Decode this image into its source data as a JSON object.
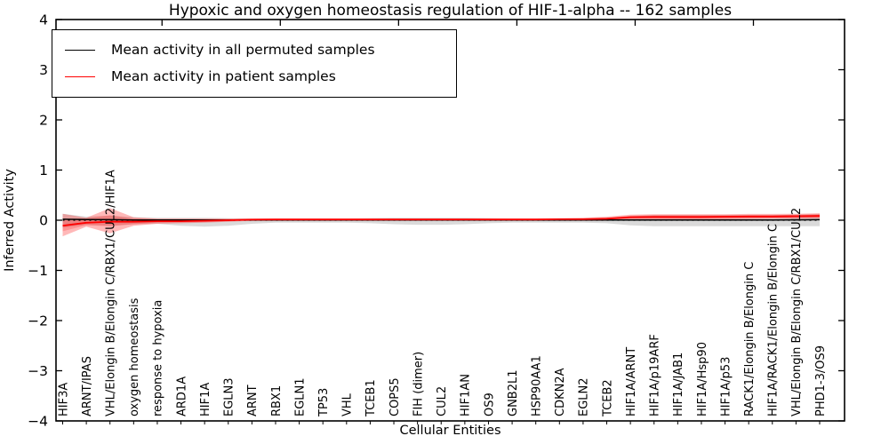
{
  "chart_data": {
    "type": "line",
    "title": "Hypoxic and oxygen homeostasis regulation of HIF-1-alpha -- 162 samples",
    "xlabel": "Cellular Entities",
    "ylabel": "Inferred Activity",
    "ylim": [
      -4,
      4
    ],
    "grid": false,
    "legend_position": "upper left",
    "yticks": [
      {
        "v": -4,
        "label": "−4"
      },
      {
        "v": -3,
        "label": "−3"
      },
      {
        "v": -2,
        "label": "−2"
      },
      {
        "v": -1,
        "label": "−1"
      },
      {
        "v": 0,
        "label": "0"
      },
      {
        "v": 1,
        "label": "1"
      },
      {
        "v": 2,
        "label": "2"
      },
      {
        "v": 3,
        "label": "3"
      },
      {
        "v": 4,
        "label": "4"
      }
    ],
    "top_ticks_at": [
      4.2,
      9.2,
      14.2,
      19.2,
      24.2,
      29.2
    ],
    "categories": [
      "HIF3A",
      "ARNT/IPAS",
      "VHL/Elongin B/Elongin C/RBX1/CUL2/HIF1A",
      "oxygen homeostasis",
      "response to hypoxia",
      "ARD1A",
      "HIF1A",
      "EGLN3",
      "ARNT",
      "RBX1",
      "EGLN1",
      "TP53",
      "VHL",
      "TCEB1",
      "COPS5",
      "FIH (dimer)",
      "CUL2",
      "HIF1AN",
      "OS9",
      "GNB2L1",
      "HSP90AA1",
      "CDKN2A",
      "EGLN2",
      "TCEB2",
      "HIF1A/ARNT",
      "HIF1A/p19ARF",
      "HIF1A/JAB1",
      "HIF1A/Hsp90",
      "HIF1A/p53",
      "RACK1/Elongin B/Elongin C",
      "HIF1A/RACK1/Elongin B/Elongin C",
      "VHL/Elongin B/Elongin C/RBX1/CUL2",
      "PHD1-3/OS9"
    ],
    "zero_line": {
      "value": 0,
      "style": "dotted",
      "color": "#000000"
    },
    "series": [
      {
        "name": "Mean activity in all permuted samples",
        "name_id": "permuted-mean-line",
        "color": "#000000",
        "width": 1.5,
        "values": [
          0.02,
          0.012,
          0.01,
          0.006,
          0.005,
          0.005,
          0.005,
          0.005,
          0.005,
          0.005,
          0.005,
          0.005,
          0.005,
          0.005,
          0.005,
          0.005,
          0.005,
          0.005,
          0.005,
          0.005,
          0.005,
          0.005,
          0.005,
          0.005,
          0.005,
          0.005,
          0.005,
          0.005,
          0.005,
          0.005,
          0.005,
          0.007,
          0.01
        ]
      },
      {
        "name": "Mean activity in patient samples",
        "name_id": "patient-mean-line",
        "color": "#ff0000",
        "width": 1.8,
        "values": [
          -0.11,
          -0.05,
          -0.03,
          -0.03,
          -0.02,
          -0.02,
          -0.01,
          0.0,
          0.01,
          0.015,
          0.015,
          0.015,
          0.015,
          0.015,
          0.015,
          0.015,
          0.015,
          0.015,
          0.015,
          0.015,
          0.015,
          0.02,
          0.02,
          0.03,
          0.06,
          0.065,
          0.065,
          0.065,
          0.07,
          0.075,
          0.075,
          0.08,
          0.085
        ]
      }
    ],
    "bands": [
      {
        "name": "permuted samples std band",
        "name_id": "permuted-std-band",
        "color": "rgba(150,150,150,0.35)",
        "upper": [
          0.13,
          0.07,
          0.09,
          0.06,
          0.05,
          0.05,
          0.05,
          0.04,
          0.03,
          0.03,
          0.03,
          0.03,
          0.03,
          0.04,
          0.05,
          0.05,
          0.05,
          0.05,
          0.04,
          0.03,
          0.03,
          0.03,
          0.03,
          0.04,
          0.08,
          0.1,
          0.1,
          0.1,
          0.1,
          0.1,
          0.1,
          0.11,
          0.12
        ],
        "lower": [
          -0.15,
          -0.09,
          -0.11,
          -0.08,
          -0.07,
          -0.11,
          -0.13,
          -0.11,
          -0.07,
          -0.05,
          -0.05,
          -0.05,
          -0.05,
          -0.06,
          -0.08,
          -0.09,
          -0.09,
          -0.08,
          -0.06,
          -0.05,
          -0.05,
          -0.05,
          -0.05,
          -0.06,
          -0.1,
          -0.12,
          -0.12,
          -0.12,
          -0.12,
          -0.12,
          -0.12,
          -0.12,
          -0.12
        ]
      },
      {
        "name": "patient samples std band",
        "name_id": "patient-std-band",
        "color": "rgba(255,40,40,0.33)",
        "upper": [
          0.13,
          0.05,
          0.24,
          0.06,
          0.03,
          0.03,
          0.03,
          0.03,
          0.035,
          0.035,
          0.035,
          0.035,
          0.035,
          0.035,
          0.035,
          0.035,
          0.035,
          0.035,
          0.035,
          0.035,
          0.035,
          0.04,
          0.05,
          0.07,
          0.11,
          0.12,
          0.12,
          0.12,
          0.12,
          0.125,
          0.125,
          0.13,
          0.14
        ],
        "lower": [
          -0.32,
          -0.13,
          -0.26,
          -0.11,
          -0.07,
          -0.06,
          -0.05,
          -0.03,
          -0.01,
          0.0,
          0.0,
          0.0,
          0.0,
          0.0,
          0.0,
          0.0,
          0.0,
          0.0,
          0.0,
          0.0,
          0.0,
          0.0,
          0.0,
          0.0,
          0.02,
          0.02,
          0.02,
          0.02,
          0.02,
          0.025,
          0.03,
          0.03,
          0.035
        ]
      },
      {
        "name": "patient samples inner band",
        "name_id": "patient-inner-band",
        "color": "rgba(255,40,40,0.25)",
        "upper": [
          0.02,
          0.04,
          0.1,
          0.03,
          0.025,
          0.025,
          0.025,
          0.025,
          0.03,
          0.03,
          0.03,
          0.03,
          0.03,
          0.03,
          0.03,
          0.03,
          0.03,
          0.03,
          0.03,
          0.03,
          0.03,
          0.035,
          0.04,
          0.05,
          0.09,
          0.1,
          0.1,
          0.1,
          0.1,
          0.105,
          0.105,
          0.11,
          0.12
        ],
        "lower": [
          -0.22,
          -0.1,
          -0.12,
          -0.08,
          -0.05,
          -0.045,
          -0.035,
          -0.02,
          0.0,
          0.005,
          0.005,
          0.005,
          0.005,
          0.005,
          0.005,
          0.005,
          0.005,
          0.005,
          0.005,
          0.005,
          0.005,
          0.008,
          0.008,
          0.01,
          0.03,
          0.03,
          0.03,
          0.03,
          0.03,
          0.04,
          0.04,
          0.04,
          0.05
        ]
      }
    ],
    "legend": [
      {
        "label": "Mean activity in all permuted samples",
        "color": "#000000"
      },
      {
        "label": "Mean activity in patient samples",
        "color": "#ff0000"
      }
    ]
  }
}
